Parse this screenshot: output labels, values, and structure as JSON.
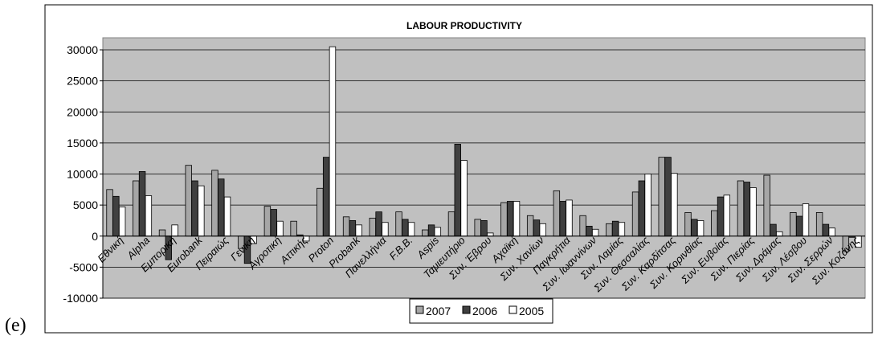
{
  "panel_label": "(e)",
  "chart_data": {
    "type": "bar",
    "title": "LABOUR PRODUCTIVITY",
    "ylim": [
      -10000,
      30000
    ],
    "yticks": [
      -10000,
      -5000,
      0,
      5000,
      10000,
      15000,
      20000,
      25000,
      30000
    ],
    "grid": true,
    "legend_position": "bottom-center",
    "categories": [
      "Εθνική",
      "Alpha",
      "Εμπορική",
      "Eurobank",
      "Πειραιώς",
      "Γενική",
      "Αγροτική",
      "Αττικής",
      "Proton",
      "Probank",
      "Πανελλήνια",
      "F.B.B.",
      "Aspis",
      "Ταμιευτήριο",
      "Συν. Έβρου",
      "Αχαϊκή",
      "Συν. Χανίων",
      "Παγκρήτια",
      "Συν. Ιωαννίνων",
      "Συν. Λαμίας",
      "Συν. Θεσσαλίας",
      "Συν. Καρδίτσας",
      "Συν. Κορινθίας",
      "Συν. Ευβοίας",
      "Συν. Πιερίας",
      "Συν. Δράμας",
      "Συν. Λέσβου",
      "Συν. Σερρών",
      "Συν. Κοζάνης"
    ],
    "series": [
      {
        "name": "2007",
        "color": "#a6a6a6",
        "values": [
          7500,
          8900,
          1000,
          11400,
          10600,
          -2000,
          4800,
          2400,
          7700,
          3100,
          2900,
          3900,
          1000,
          3900,
          2700,
          5400,
          3300,
          7300,
          3300,
          2000,
          7100,
          12700,
          3800,
          4100,
          8900,
          9800,
          3800,
          3800,
          -2500
        ]
      },
      {
        "name": "2006",
        "color": "#404040",
        "values": [
          6400,
          10400,
          -3800,
          8900,
          9200,
          -4400,
          4300,
          200,
          12700,
          2500,
          3900,
          2700,
          1800,
          14800,
          2500,
          5600,
          2600,
          5600,
          1600,
          2400,
          8900,
          12700,
          2700,
          6300,
          8700,
          1900,
          3200,
          1900,
          -200
        ]
      },
      {
        "name": "2005",
        "color": "#ffffff",
        "values": [
          4700,
          6500,
          1800,
          8100,
          6300,
          -1200,
          2400,
          -800,
          30500,
          1800,
          2200,
          2200,
          1400,
          12200,
          500,
          5600,
          2000,
          5800,
          1100,
          2200,
          10000,
          10100,
          2500,
          6600,
          7800,
          700,
          5200,
          1300,
          -1800
        ]
      }
    ]
  }
}
